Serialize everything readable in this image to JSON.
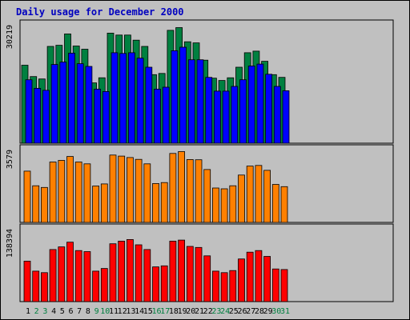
{
  "title": "Daily usage for December 2000",
  "colors": {
    "background": "#c0c0c0",
    "hits": "#008040",
    "files": "#0000ff",
    "pages": "#ff8000",
    "visits": "#ff0000",
    "title": "#0000c0",
    "weekday_label": "#000000",
    "weekend_label": "#008040"
  },
  "chart_data": {
    "type": "bar",
    "title": "Daily usage for December 2000",
    "categories": [
      "1",
      "2",
      "3",
      "4",
      "5",
      "6",
      "7",
      "8",
      "9",
      "10",
      "11",
      "12",
      "13",
      "14",
      "15",
      "16",
      "17",
      "18",
      "19",
      "20",
      "21",
      "22",
      "23",
      "24",
      "25",
      "26",
      "27",
      "28",
      "29",
      "30",
      "31"
    ],
    "weekend_days": [
      "2",
      "3",
      "9",
      "10",
      "16",
      "17",
      "23",
      "24",
      "30",
      "31"
    ],
    "panels": [
      {
        "name": "top",
        "ymax_label": "30219",
        "ylim": [
          0,
          30219
        ],
        "series": [
          {
            "color": "#008040",
            "values": [
              19900,
              17000,
              16400,
              24700,
              25000,
              27900,
              24800,
              24000,
              15400,
              16700,
              28100,
              27600,
              27600,
              26300,
              24700,
              17500,
              17800,
              28800,
              29500,
              25900,
              25600,
              21200,
              16600,
              16000,
              16700,
              19400,
              23100,
              23500,
              20900,
              17500,
              16800
            ]
          },
          {
            "color": "#0000ff",
            "values": [
              16200,
              14000,
              13500,
              20100,
              20700,
              23000,
              20300,
              19600,
              13800,
              13200,
              23100,
              22900,
              23100,
              21700,
              19400,
              13800,
              14300,
              23600,
              24500,
              21300,
              21300,
              16800,
              13300,
              13300,
              14500,
              16200,
              19700,
              20200,
              17600,
              14500,
              13400
            ]
          }
        ]
      },
      {
        "name": "middle",
        "ymax_label": "3579",
        "ylim": [
          0,
          3579
        ],
        "series": [
          {
            "color": "#ff8000",
            "values": [
              2520,
              1800,
              1720,
              2970,
              3050,
              3240,
              2970,
              2880,
              1790,
              1890,
              3310,
              3260,
              3190,
              3100,
              2880,
              1910,
              1960,
              3390,
              3480,
              3090,
              3080,
              2600,
              1690,
              1650,
              1800,
              2330,
              2770,
              2800,
              2560,
              1870,
              1760
            ]
          }
        ]
      },
      {
        "name": "bottom",
        "ymax_label": "138394",
        "ylim": [
          0,
          138394
        ],
        "series": [
          {
            "color": "#ff0000",
            "values": [
              77000,
              58000,
              55000,
              99000,
              104000,
              113000,
              97000,
              95000,
              58000,
              63000,
              110000,
              115000,
              118000,
              108000,
              99000,
              66000,
              68000,
              115000,
              117000,
              105000,
              103000,
              87000,
              58000,
              55000,
              59000,
              81000,
              94000,
              97000,
              86000,
              62000,
              61000
            ]
          }
        ]
      }
    ]
  }
}
